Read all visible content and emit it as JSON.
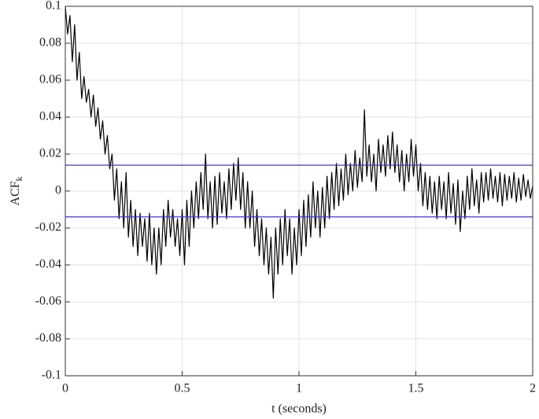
{
  "chart_data": {
    "type": "line",
    "xlabel": "t (seconds)",
    "ylabel": "ACF",
    "ylabel_sub": "k",
    "xlim": [
      0,
      2
    ],
    "ylim": [
      -0.1,
      0.1
    ],
    "xticks": [
      0,
      0.5,
      1,
      1.5,
      2
    ],
    "yticks": [
      -0.1,
      -0.08,
      -0.06,
      -0.04,
      -0.02,
      0,
      0.02,
      0.04,
      0.06,
      0.08,
      0.1
    ],
    "grid": true,
    "hlines": [
      {
        "value": 0.014,
        "color": "#3a3acc"
      },
      {
        "value": -0.014,
        "color": "#3a3acc"
      }
    ],
    "x": [
      0,
      0.01,
      0.02,
      0.03,
      0.04,
      0.05,
      0.06,
      0.07,
      0.08,
      0.09,
      0.1,
      0.11,
      0.12,
      0.13,
      0.14,
      0.15,
      0.16,
      0.17,
      0.18,
      0.19,
      0.2,
      0.21,
      0.22,
      0.23,
      0.24,
      0.25,
      0.26,
      0.27,
      0.28,
      0.29,
      0.3,
      0.31,
      0.32,
      0.33,
      0.34,
      0.35,
      0.36,
      0.37,
      0.38,
      0.39,
      0.4,
      0.41,
      0.42,
      0.43,
      0.44,
      0.45,
      0.46,
      0.47,
      0.48,
      0.49,
      0.5,
      0.51,
      0.52,
      0.53,
      0.54,
      0.55,
      0.56,
      0.57,
      0.58,
      0.59,
      0.6,
      0.61,
      0.62,
      0.63,
      0.64,
      0.65,
      0.66,
      0.67,
      0.68,
      0.69,
      0.7,
      0.71,
      0.72,
      0.73,
      0.74,
      0.75,
      0.76,
      0.77,
      0.78,
      0.79,
      0.8,
      0.81,
      0.82,
      0.83,
      0.84,
      0.85,
      0.86,
      0.87,
      0.88,
      0.89,
      0.9,
      0.91,
      0.92,
      0.93,
      0.94,
      0.95,
      0.96,
      0.97,
      0.98,
      0.99,
      1,
      1.01,
      1.02,
      1.03,
      1.04,
      1.05,
      1.06,
      1.07,
      1.08,
      1.09,
      1.1,
      1.11,
      1.12,
      1.13,
      1.14,
      1.15,
      1.16,
      1.17,
      1.18,
      1.19,
      1.2,
      1.21,
      1.22,
      1.23,
      1.24,
      1.25,
      1.26,
      1.27,
      1.28,
      1.29,
      1.3,
      1.31,
      1.32,
      1.33,
      1.34,
      1.35,
      1.36,
      1.37,
      1.38,
      1.39,
      1.4,
      1.41,
      1.42,
      1.43,
      1.44,
      1.45,
      1.46,
      1.47,
      1.48,
      1.49,
      1.5,
      1.51,
      1.52,
      1.53,
      1.54,
      1.55,
      1.56,
      1.57,
      1.58,
      1.59,
      1.6,
      1.61,
      1.62,
      1.63,
      1.64,
      1.65,
      1.66,
      1.67,
      1.68,
      1.69,
      1.7,
      1.71,
      1.72,
      1.73,
      1.74,
      1.75,
      1.76,
      1.77,
      1.78,
      1.79,
      1.8,
      1.81,
      1.82,
      1.83,
      1.84,
      1.85,
      1.86,
      1.87,
      1.88,
      1.89,
      1.9,
      1.91,
      1.92,
      1.93,
      1.94,
      1.95,
      1.96,
      1.97,
      1.98,
      1.99,
      2
    ],
    "series": [
      {
        "color": "#000000",
        "values": [
          0.1,
          0.085,
          0.095,
          0.07,
          0.09,
          0.06,
          0.075,
          0.05,
          0.062,
          0.048,
          0.055,
          0.04,
          0.052,
          0.035,
          0.045,
          0.028,
          0.038,
          0.02,
          0.03,
          0.012,
          0.02,
          -0.005,
          0.012,
          -0.015,
          0.005,
          -0.02,
          0.01,
          -0.025,
          -0.005,
          -0.03,
          -0.01,
          -0.035,
          -0.012,
          -0.03,
          -0.015,
          -0.038,
          -0.012,
          -0.04,
          -0.02,
          -0.045,
          -0.02,
          -0.04,
          -0.01,
          -0.03,
          -0.005,
          -0.025,
          -0.01,
          -0.03,
          -0.015,
          -0.035,
          -0.01,
          -0.04,
          -0.005,
          -0.03,
          0,
          -0.02,
          0.005,
          -0.015,
          0.01,
          -0.01,
          0.02,
          -0.015,
          0.005,
          -0.02,
          0.008,
          -0.018,
          0.01,
          -0.012,
          0.005,
          -0.015,
          0.012,
          -0.01,
          0.015,
          -0.005,
          0.018,
          -0.01,
          0.01,
          -0.02,
          0.005,
          -0.02,
          0,
          -0.03,
          -0.01,
          -0.035,
          -0.015,
          -0.04,
          -0.02,
          -0.045,
          -0.025,
          -0.058,
          -0.02,
          -0.045,
          -0.015,
          -0.04,
          -0.01,
          -0.035,
          -0.015,
          -0.045,
          -0.02,
          -0.04,
          -0.01,
          -0.035,
          -0.005,
          -0.03,
          -0.002,
          -0.025,
          0.005,
          -0.02,
          0,
          -0.025,
          0.002,
          -0.02,
          0.008,
          -0.015,
          0.01,
          -0.01,
          0.015,
          -0.008,
          0.012,
          -0.005,
          0.02,
          -0.002,
          0.015,
          0,
          0.022,
          0.002,
          0.018,
          0.005,
          0.044,
          0.008,
          0.025,
          0.005,
          0.02,
          0,
          0.028,
          0.01,
          0.025,
          0.008,
          0.03,
          0.012,
          0.032,
          0.01,
          0.025,
          0.005,
          0.022,
          0,
          0.02,
          0.005,
          0.028,
          0.008,
          0.025,
          0,
          0.015,
          -0.008,
          0.01,
          -0.01,
          0.008,
          -0.012,
          0.005,
          -0.015,
          0.008,
          -0.01,
          0.005,
          -0.015,
          0.01,
          -0.012,
          0.004,
          -0.018,
          0.006,
          -0.022,
          0,
          -0.015,
          0.008,
          -0.01,
          0.012,
          -0.008,
          0.006,
          -0.012,
          0.01,
          -0.006,
          0.01,
          -0.005,
          0.012,
          -0.004,
          0.008,
          -0.006,
          0.01,
          -0.008,
          0.009,
          -0.005,
          0.008,
          -0.004,
          0.01,
          -0.006,
          0.007,
          -0.005,
          0.009,
          -0.003,
          0.006,
          -0.004,
          0.003
        ]
      }
    ]
  }
}
